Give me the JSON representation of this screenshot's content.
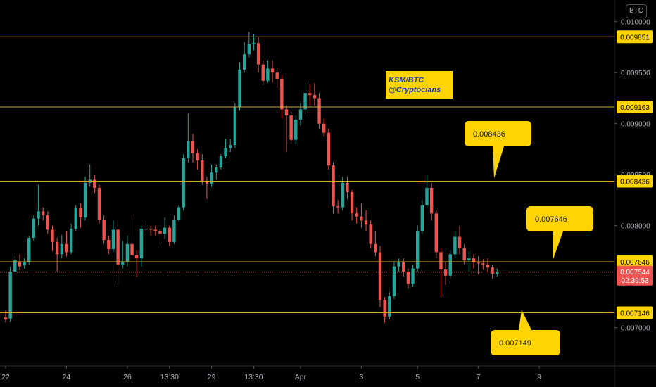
{
  "header": {
    "currency_badge": "BTC"
  },
  "chart_data": {
    "type": "candlestick",
    "symbol_note": [
      "KSM/BTC",
      "@Cryptocians"
    ],
    "currency": "BTC",
    "y_axis": {
      "range": [
        0.006915,
        0.01006
      ],
      "ticks": [
        {
          "value": 0.01,
          "label": "0.010000"
        },
        {
          "value": 0.0095,
          "label": "0.009500"
        },
        {
          "value": 0.009,
          "label": "0.009000"
        },
        {
          "value": 0.0085,
          "label": "0.008500"
        },
        {
          "value": 0.008,
          "label": "0.008000"
        },
        {
          "value": 0.007,
          "label": "0.007000"
        }
      ]
    },
    "x_axis": {
      "ticks": [
        {
          "index": 0,
          "label": "22"
        },
        {
          "index": 13,
          "label": "24"
        },
        {
          "index": 26,
          "label": "26"
        },
        {
          "index": 35,
          "label": "13:30"
        },
        {
          "index": 44,
          "label": "29"
        },
        {
          "index": 53,
          "label": "13:30"
        },
        {
          "index": 63,
          "label": "Apr"
        },
        {
          "index": 76,
          "label": "3"
        },
        {
          "index": 88,
          "label": "5"
        },
        {
          "index": 101,
          "label": "7"
        },
        {
          "index": 114,
          "label": "9"
        }
      ]
    },
    "levels": [
      {
        "value": 0.009851,
        "label": "0.009851"
      },
      {
        "value": 0.009163,
        "label": "0.009163"
      },
      {
        "value": 0.008436,
        "label": "0.008436"
      },
      {
        "value": 0.007646,
        "label": "0.007646"
      },
      {
        "value": 0.007146,
        "label": "0.007146"
      }
    ],
    "callouts": [
      {
        "text": "0.008436",
        "price": 0.008436
      },
      {
        "text": "0.007646",
        "price": 0.007646
      },
      {
        "text": "0.007149",
        "price": 0.007149
      }
    ],
    "current_price": {
      "value": 0.007544,
      "label": "0.007544",
      "countdown": "02:39:53"
    },
    "candles": [
      [
        0.0071,
        0.00708,
        0.00717,
        0.00705
      ],
      [
        0.00709,
        0.00755,
        0.0076,
        0.00706
      ],
      [
        0.00755,
        0.00766,
        0.0077,
        0.00752
      ],
      [
        0.00765,
        0.0076,
        0.00772,
        0.00756
      ],
      [
        0.00761,
        0.00764,
        0.00768,
        0.00758
      ],
      [
        0.00764,
        0.00788,
        0.0079,
        0.00762
      ],
      [
        0.00788,
        0.00807,
        0.0081,
        0.00785
      ],
      [
        0.00807,
        0.00814,
        0.0084,
        0.008
      ],
      [
        0.00814,
        0.0081,
        0.00818,
        0.00805
      ],
      [
        0.0081,
        0.00796,
        0.00814,
        0.00792
      ],
      [
        0.00796,
        0.00784,
        0.008,
        0.00775
      ],
      [
        0.00784,
        0.00772,
        0.00788,
        0.00755
      ],
      [
        0.00772,
        0.00782,
        0.00791,
        0.00768
      ],
      [
        0.00782,
        0.00774,
        0.00795,
        0.0077
      ],
      [
        0.00774,
        0.00797,
        0.00802,
        0.00772
      ],
      [
        0.00797,
        0.00817,
        0.0082,
        0.00795
      ],
      [
        0.00817,
        0.00808,
        0.00822,
        0.00798
      ],
      [
        0.00808,
        0.00842,
        0.00848,
        0.00805
      ],
      [
        0.00842,
        0.00845,
        0.0086,
        0.00838
      ],
      [
        0.00845,
        0.00837,
        0.0085,
        0.00832
      ],
      [
        0.00837,
        0.00806,
        0.0084,
        0.00802
      ],
      [
        0.00806,
        0.00786,
        0.0081,
        0.00782
      ],
      [
        0.00786,
        0.00777,
        0.0079,
        0.00772
      ],
      [
        0.00777,
        0.00796,
        0.00805,
        0.00774
      ],
      [
        0.00796,
        0.00762,
        0.00798,
        0.00742
      ],
      [
        0.00762,
        0.00765,
        0.00785,
        0.00758
      ],
      [
        0.00765,
        0.00782,
        0.0079,
        0.0076
      ],
      [
        0.00782,
        0.00771,
        0.00811,
        0.00768
      ],
      [
        0.00771,
        0.00768,
        0.00776,
        0.0075
      ],
      [
        0.00768,
        0.00797,
        0.008,
        0.0076
      ],
      [
        0.00797,
        0.00797,
        0.00805,
        0.0079
      ],
      [
        0.00797,
        0.00796,
        0.008,
        0.0079
      ],
      [
        0.00796,
        0.00795,
        0.008,
        0.0079
      ],
      [
        0.00795,
        0.00792,
        0.00797,
        0.00782
      ],
      [
        0.00792,
        0.00798,
        0.00808,
        0.00787
      ],
      [
        0.00798,
        0.00784,
        0.008,
        0.0078
      ],
      [
        0.00784,
        0.00806,
        0.0081,
        0.00782
      ],
      [
        0.00806,
        0.00818,
        0.0082,
        0.00804
      ],
      [
        0.00818,
        0.00866,
        0.0087,
        0.00815
      ],
      [
        0.00866,
        0.00883,
        0.0091,
        0.00862
      ],
      [
        0.00883,
        0.00871,
        0.0089,
        0.00862
      ],
      [
        0.00871,
        0.00864,
        0.00875,
        0.00855
      ],
      [
        0.00864,
        0.00844,
        0.0087,
        0.0084
      ],
      [
        0.00844,
        0.00841,
        0.00848,
        0.00826
      ],
      [
        0.00841,
        0.00852,
        0.0086,
        0.00838
      ],
      [
        0.00852,
        0.00857,
        0.0086,
        0.00845
      ],
      [
        0.00857,
        0.00868,
        0.0087,
        0.00855
      ],
      [
        0.00868,
        0.00876,
        0.00885,
        0.00866
      ],
      [
        0.00876,
        0.00879,
        0.00885,
        0.00872
      ],
      [
        0.00879,
        0.00916,
        0.0092,
        0.00876
      ],
      [
        0.00916,
        0.00953,
        0.0096,
        0.00913
      ],
      [
        0.00953,
        0.00968,
        0.0098,
        0.0095
      ],
      [
        0.00968,
        0.00978,
        0.0099,
        0.00965
      ],
      [
        0.00978,
        0.00979,
        0.00988,
        0.00972
      ],
      [
        0.00979,
        0.00958,
        0.00985,
        0.0095
      ],
      [
        0.00958,
        0.00942,
        0.00962,
        0.00938
      ],
      [
        0.00942,
        0.00954,
        0.00962,
        0.0094
      ],
      [
        0.00954,
        0.0095,
        0.00962,
        0.0094
      ],
      [
        0.0095,
        0.00944,
        0.00955,
        0.00935
      ],
      [
        0.00944,
        0.00914,
        0.00948,
        0.00905
      ],
      [
        0.00914,
        0.00908,
        0.00918,
        0.00872
      ],
      [
        0.00908,
        0.00884,
        0.00912,
        0.0088
      ],
      [
        0.00884,
        0.00904,
        0.00908,
        0.0088
      ],
      [
        0.00904,
        0.00914,
        0.0092,
        0.00898
      ],
      [
        0.00914,
        0.0093,
        0.0094,
        0.0091
      ],
      [
        0.0093,
        0.00928,
        0.00938,
        0.00918
      ],
      [
        0.00928,
        0.00925,
        0.0094,
        0.00918
      ],
      [
        0.00925,
        0.009,
        0.0093,
        0.00895
      ],
      [
        0.009,
        0.00891,
        0.00905,
        0.00888
      ],
      [
        0.00891,
        0.00859,
        0.00895,
        0.00855
      ],
      [
        0.00859,
        0.00819,
        0.00862,
        0.00812
      ],
      [
        0.00819,
        0.00818,
        0.00825,
        0.00812
      ],
      [
        0.00818,
        0.00842,
        0.00848,
        0.00815
      ],
      [
        0.00842,
        0.00833,
        0.00848,
        0.00826
      ],
      [
        0.00833,
        0.00812,
        0.00835,
        0.00805
      ],
      [
        0.00812,
        0.00809,
        0.00818,
        0.00802
      ],
      [
        0.00809,
        0.00805,
        0.00822,
        0.00798
      ],
      [
        0.00805,
        0.00801,
        0.00815,
        0.00795
      ],
      [
        0.00801,
        0.00782,
        0.00805,
        0.00778
      ],
      [
        0.00782,
        0.00774,
        0.00795,
        0.0077
      ],
      [
        0.00774,
        0.00727,
        0.0078,
        0.0072
      ],
      [
        0.00727,
        0.00711,
        0.0073,
        0.00705
      ],
      [
        0.00711,
        0.00731,
        0.00735,
        0.00708
      ],
      [
        0.00731,
        0.0076,
        0.00765,
        0.00728
      ],
      [
        0.0076,
        0.00764,
        0.00768,
        0.00755
      ],
      [
        0.00764,
        0.00755,
        0.00768,
        0.0075
      ],
      [
        0.00755,
        0.00743,
        0.00758,
        0.00738
      ],
      [
        0.00743,
        0.00758,
        0.00762,
        0.0074
      ],
      [
        0.00758,
        0.00795,
        0.008,
        0.00755
      ],
      [
        0.00795,
        0.0082,
        0.00825,
        0.00792
      ],
      [
        0.0082,
        0.00837,
        0.0085,
        0.00818
      ],
      [
        0.00837,
        0.00812,
        0.00842,
        0.00805
      ],
      [
        0.00812,
        0.00774,
        0.00815,
        0.00768
      ],
      [
        0.00774,
        0.00757,
        0.00778,
        0.0073
      ],
      [
        0.00757,
        0.00751,
        0.00765,
        0.00742
      ],
      [
        0.00751,
        0.00772,
        0.00776,
        0.00748
      ],
      [
        0.00772,
        0.00789,
        0.00795,
        0.00768
      ],
      [
        0.00789,
        0.00778,
        0.008,
        0.00772
      ],
      [
        0.00778,
        0.00766,
        0.00782,
        0.00762
      ],
      [
        0.00766,
        0.00768,
        0.00775,
        0.00755
      ],
      [
        0.00768,
        0.00764,
        0.00772,
        0.00758
      ],
      [
        0.00764,
        0.00763,
        0.0077,
        0.00752
      ],
      [
        0.00763,
        0.00762,
        0.00767,
        0.00757
      ],
      [
        0.00762,
        0.00759,
        0.00768,
        0.00754
      ],
      [
        0.00759,
        0.00753,
        0.00762,
        0.00748
      ],
      [
        0.00753,
        0.00754,
        0.00758,
        0.0075
      ]
    ]
  }
}
